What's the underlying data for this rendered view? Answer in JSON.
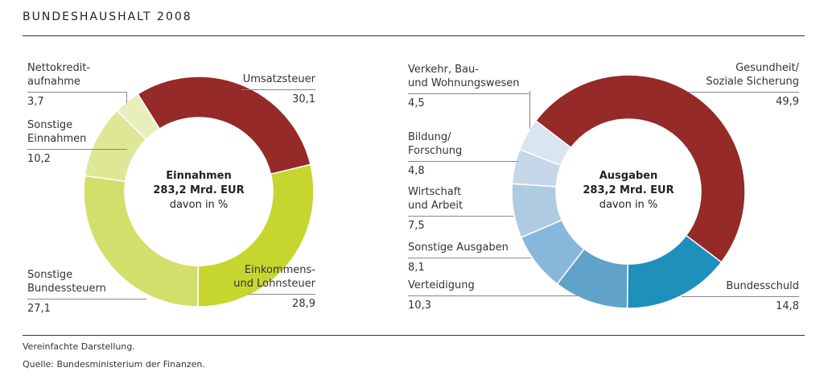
{
  "title": "BUNDESHAUSHALT 2008",
  "footnote": "Vereinfachte Darstellung.",
  "source": "Quelle: Bundesministerium der Finanzen.",
  "chart_data": [
    {
      "type": "pie",
      "donut": true,
      "center_title": "Einnahmen",
      "center_total": "283,2 Mrd. EUR",
      "center_unit": "davon in %",
      "categories": [
        "Umsatzsteuer",
        "Einkommens- und Lohnsteuer",
        "Sonstige Bundessteuern",
        "Sonstige Einnahmen",
        "Nettokredit-aufnahme"
      ],
      "values": [
        30.1,
        28.9,
        27.1,
        10.2,
        3.7
      ],
      "value_labels": [
        "30,1",
        "28,9",
        "27,1",
        "10,2",
        "3,7"
      ],
      "label_lines": [
        [
          "Umsatzsteuer"
        ],
        [
          "Einkommens-",
          "und Lohnsteuer"
        ],
        [
          "Sonstige",
          "Bundessteuern"
        ],
        [
          "Sonstige",
          "Einnahmen"
        ],
        [
          "Nettokredit-",
          "aufnahme"
        ]
      ],
      "colors": [
        "#952a29",
        "#c6d62f",
        "#d3df6b",
        "#dee795",
        "#e9eebd"
      ]
    },
    {
      "type": "pie",
      "donut": true,
      "center_title": "Ausgaben",
      "center_total": "283,2 Mrd. EUR",
      "center_unit": "davon in %",
      "categories": [
        "Gesundheit/ Soziale Sicherung",
        "Bundesschuld",
        "Verteidigung",
        "Sonstige Ausgaben",
        "Wirtschaft und Arbeit",
        "Bildung/ Forschung",
        "Verkehr, Bau- und Wohnungswesen"
      ],
      "values": [
        49.9,
        14.8,
        10.3,
        8.1,
        7.5,
        4.8,
        4.5
      ],
      "value_labels": [
        "49,9",
        "14,8",
        "10,3",
        "8,1",
        "7,5",
        "4,8",
        "4,5"
      ],
      "label_lines": [
        [
          "Gesundheit/",
          "Soziale Sicherung"
        ],
        [
          "Bundesschuld"
        ],
        [
          "Verteidigung"
        ],
        [
          "Sonstige Ausgaben"
        ],
        [
          "Wirtschaft",
          "und Arbeit"
        ],
        [
          "Bildung/",
          "Forschung"
        ],
        [
          "Verkehr, Bau-",
          "und Wohnungswesen"
        ]
      ],
      "colors": [
        "#952a29",
        "#1f8fbc",
        "#60a2ca",
        "#87b8db",
        "#aecbe2",
        "#c5d8ea",
        "#d9e5f0"
      ]
    }
  ]
}
